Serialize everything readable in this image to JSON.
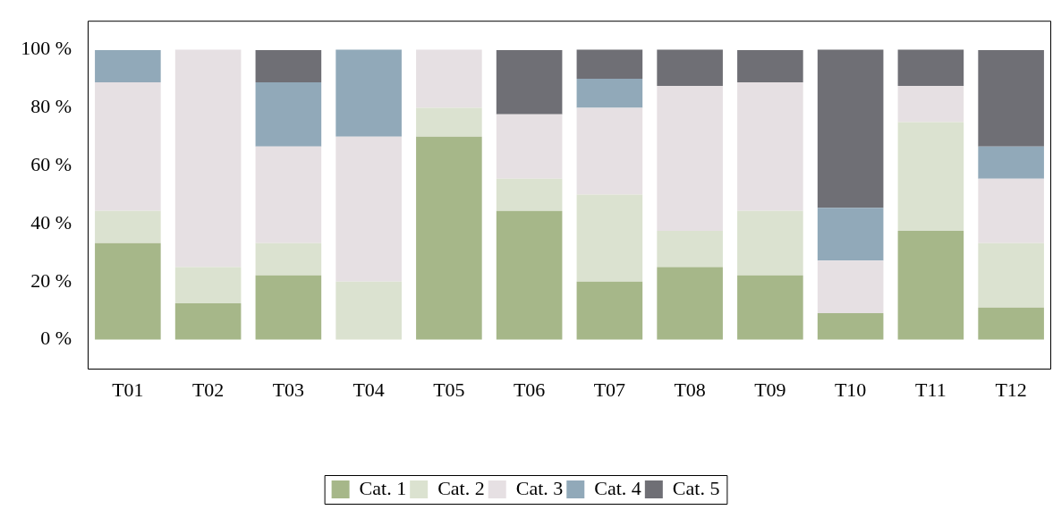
{
  "chart_data": {
    "type": "bar",
    "stacked": true,
    "categories": [
      "T01",
      "T02",
      "T03",
      "T04",
      "T05",
      "T06",
      "T07",
      "T08",
      "T09",
      "T10",
      "T11",
      "T12"
    ],
    "series": [
      {
        "name": "Cat. 1",
        "color": "#a6b789",
        "values": [
          33.3,
          12.5,
          22.2,
          0,
          70,
          44.4,
          20,
          25,
          22.2,
          9.1,
          37.5,
          11.1
        ]
      },
      {
        "name": "Cat. 2",
        "color": "#dbe2d0",
        "values": [
          11.1,
          12.5,
          11.1,
          20,
          10,
          11.1,
          30,
          12.5,
          22.2,
          0,
          37.5,
          22.2
        ]
      },
      {
        "name": "Cat. 3",
        "color": "#e6e0e3",
        "values": [
          44.4,
          75,
          33.3,
          50,
          20,
          22.2,
          30,
          50,
          44.4,
          18.2,
          12.5,
          22.2
        ]
      },
      {
        "name": "Cat. 4",
        "color": "#91a9b9",
        "values": [
          11.1,
          0,
          22.2,
          30,
          0,
          0,
          10,
          0,
          0,
          18.2,
          0,
          11.1
        ]
      },
      {
        "name": "Cat. 5",
        "color": "#6f6f75",
        "values": [
          0,
          0,
          11.1,
          0,
          0,
          22.2,
          10,
          12.5,
          11.1,
          54.5,
          12.5,
          33.3
        ]
      }
    ],
    "ylim": [
      -10,
      110
    ],
    "yticks": [
      {
        "value": 0,
        "label": "0 %"
      },
      {
        "value": 20,
        "label": "20 %"
      },
      {
        "value": 40,
        "label": "40 %"
      },
      {
        "value": 60,
        "label": "60 %"
      },
      {
        "value": 80,
        "label": "80 %"
      },
      {
        "value": 100,
        "label": "100 %"
      }
    ],
    "grid": false,
    "legend": "bottom"
  }
}
